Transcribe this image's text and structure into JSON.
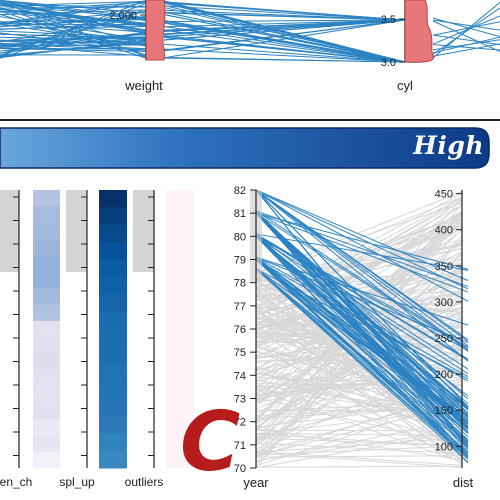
{
  "top_panel": {
    "weight_axis": {
      "label": "weight",
      "tick": "2,000"
    },
    "cyl_axis": {
      "label": "cyl",
      "ticks": [
        "3.5",
        "3.0"
      ]
    }
  },
  "banner": {
    "title": "High",
    "color_left": "#6aa7dd",
    "color_right": "#0d3a86"
  },
  "legend_columns": {
    "labels": [
      "en_ch",
      "spl_up",
      "outliers"
    ],
    "spl_up_shades": [
      "#b4c3e2",
      "#a7bbdf",
      "#a4b9de",
      "#9fb6dc",
      "#94afd9",
      "#94afd9",
      "#a2b8dd",
      "#b1c1e1",
      "#e4e1f1",
      "#e2dff0",
      "#e0ddef",
      "#e3e0f1",
      "#e5e2f2",
      "#e2dff0",
      "#ebe8f5",
      "#e8e5f3",
      "#f3f0f9"
    ],
    "outliers_shades": [
      "#08306b",
      "#08407e",
      "#084a8c",
      "#08519c",
      "#0b5ba4",
      "#105fa8",
      "#1764ab",
      "#1c6aaf",
      "#1d6db1",
      "#1f6eb2",
      "#2171b5",
      "#2373b6",
      "#2775b7",
      "#2c78b9",
      "#3282bd",
      "#3a88c0"
    ]
  },
  "chart_data": {
    "type": "parallel_coordinates",
    "axes": [
      {
        "name": "year",
        "range": [
          70,
          82
        ],
        "ticks": [
          "70",
          "71",
          "72",
          "73",
          "74",
          "75",
          "76",
          "77",
          "78",
          "79",
          "80",
          "81",
          "82"
        ]
      },
      {
        "name": "dist",
        "range": [
          70,
          455
        ],
        "ticks": [
          "100",
          "150",
          "200",
          "250",
          "300",
          "350",
          "400",
          "450"
        ]
      }
    ],
    "highlight_color": "#2b83c3",
    "context_color": "#d8d8d8",
    "brush_on_year": [
      78.5,
      82
    ]
  },
  "big_letter": "C"
}
